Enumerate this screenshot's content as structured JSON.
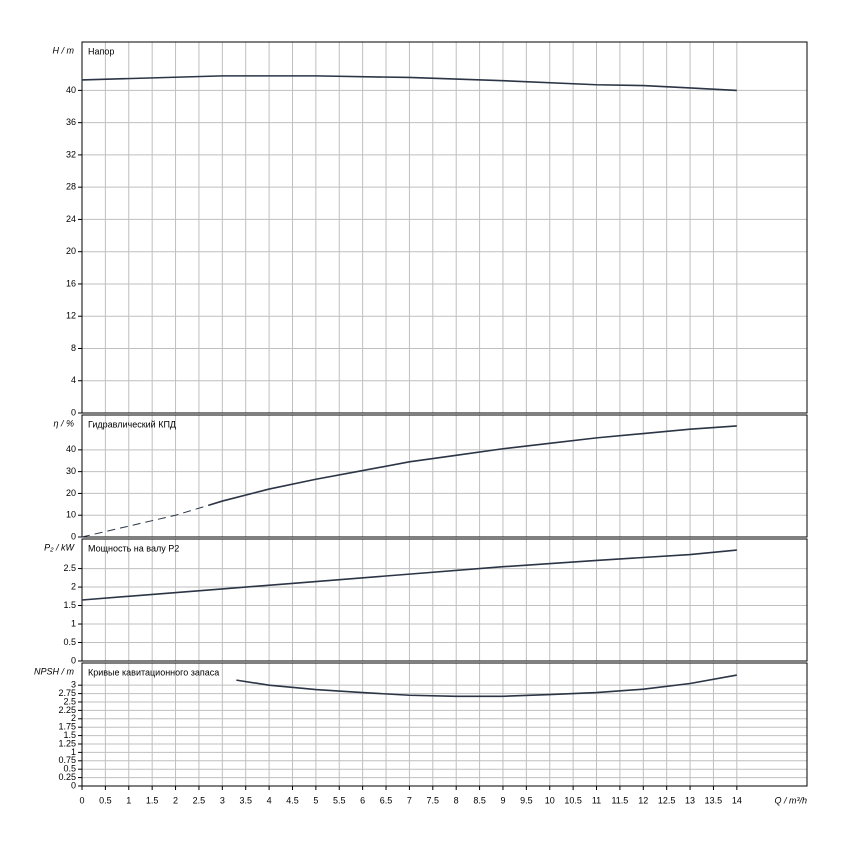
{
  "chart_data": [
    {
      "type": "line",
      "title": "Напор",
      "ylabel": "H / m",
      "x": [
        0,
        3,
        5,
        7,
        9,
        11,
        12,
        13,
        14
      ],
      "series": [
        {
          "color": "#2b3545",
          "dashed": false,
          "values": [
            41.3,
            41.8,
            41.8,
            41.6,
            41.2,
            40.7,
            40.6,
            40.3,
            40.0
          ]
        }
      ],
      "ylim": [
        0,
        46
      ],
      "yticks": [
        0,
        4,
        8,
        12,
        16,
        20,
        24,
        28,
        32,
        36,
        40
      ],
      "grid": true
    },
    {
      "type": "line",
      "title": "Гидравлический КПД",
      "ylabel": "η / %",
      "x": [
        0,
        1,
        2,
        2.7,
        3,
        4,
        5,
        6,
        7,
        8,
        9,
        10,
        11,
        12,
        13,
        14
      ],
      "series": [
        {
          "color": "#2b3545",
          "dashed": true,
          "values": [
            0,
            5,
            10,
            14.5,
            null,
            null,
            null,
            null,
            null,
            null,
            null,
            null,
            null,
            null,
            null,
            null
          ]
        },
        {
          "color": "#2b3545",
          "dashed": false,
          "values": [
            null,
            null,
            null,
            14.5,
            16.5,
            22,
            26.5,
            30.5,
            34.5,
            37.5,
            40.5,
            43,
            45.5,
            47.5,
            49.5,
            51
          ]
        }
      ],
      "ylim": [
        0,
        56
      ],
      "yticks": [
        0,
        10,
        20,
        30,
        40
      ],
      "grid": true
    },
    {
      "type": "line",
      "title": "Мощность на валу P2",
      "ylabel": "P₂ / kW",
      "x": [
        0,
        3,
        5,
        7,
        9,
        11,
        13,
        14
      ],
      "series": [
        {
          "color": "#2b3545",
          "dashed": false,
          "values": [
            1.65,
            1.95,
            2.15,
            2.35,
            2.55,
            2.72,
            2.88,
            3.0
          ]
        }
      ],
      "ylim": [
        0,
        3.3
      ],
      "yticks": [
        0,
        0.5,
        1,
        1.5,
        2,
        2.5
      ],
      "grid": true
    },
    {
      "type": "line",
      "title": "Кривые кавитационного запаса",
      "ylabel": "NPSH / m",
      "xlabel": "Q / m³/h",
      "x": [
        3.3,
        4,
        5,
        6,
        7,
        8,
        9,
        10,
        11,
        12,
        13,
        14
      ],
      "series": [
        {
          "color": "#2b3545",
          "dashed": false,
          "values": [
            3.15,
            3.0,
            2.87,
            2.78,
            2.7,
            2.67,
            2.67,
            2.72,
            2.78,
            2.88,
            3.05,
            3.3
          ]
        }
      ],
      "ylim": [
        0,
        3.66
      ],
      "yticks": [
        0,
        0.25,
        0.5,
        0.75,
        1,
        1.25,
        1.5,
        1.75,
        2,
        2.25,
        2.5,
        2.75,
        3
      ],
      "grid": true,
      "xlim": [
        0,
        15.5
      ],
      "xticks": [
        0,
        0.5,
        1,
        1.5,
        2,
        2.5,
        3,
        3.5,
        4,
        4.5,
        5,
        5.5,
        6,
        6.5,
        7,
        7.5,
        8,
        8.5,
        9,
        9.5,
        10,
        10.5,
        11,
        11.5,
        12,
        12.5,
        13,
        13.5,
        14
      ]
    }
  ]
}
